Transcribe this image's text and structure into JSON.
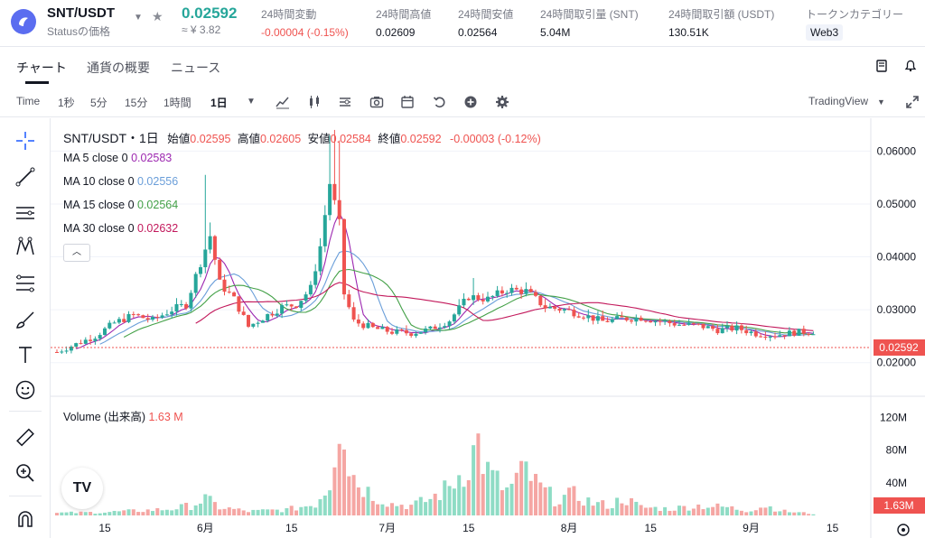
{
  "header": {
    "symbol": "SNT/USDT",
    "subtitle": "Statusの価格",
    "price": "0.02592",
    "price_jpy": "≈ ¥ 3.82",
    "stats": [
      {
        "label": "24時間変動",
        "value": "-0.00004 (-0.15%)",
        "negative": true
      },
      {
        "label": "24時間高値",
        "value": "0.02609"
      },
      {
        "label": "24時間安値",
        "value": "0.02564"
      },
      {
        "label": "24時間取引量 (SNT)",
        "value": "5.04M"
      },
      {
        "label": "24時間取引額 (USDT)",
        "value": "130.51K"
      },
      {
        "label": "トークンカテゴリー",
        "value": "Web3",
        "tag": true
      }
    ]
  },
  "tabs": [
    "チャート",
    "通貨の概要",
    "ニュース"
  ],
  "toolbar": {
    "intervals": [
      "Time",
      "1秒",
      "5分",
      "15分",
      "1時間",
      "1日"
    ],
    "active_interval": "1日",
    "view_mode": "TradingView",
    "icons": [
      "indicator-icon",
      "candle-type-icon",
      "settings-list-icon",
      "camera-icon",
      "calendar-icon",
      "undo-icon",
      "add-icon",
      "gear-icon"
    ]
  },
  "legend": {
    "title": "SNT/USDT・1日",
    "open_label": "始値",
    "open": "0.02595",
    "high_label": "高値",
    "high": "0.02605",
    "low_label": "安値",
    "low": "0.02584",
    "close_label": "終値",
    "close": "0.02592",
    "change": "-0.00003 (-0.12%)",
    "ma": [
      {
        "label": "MA 5 close 0",
        "value": "0.02583",
        "color": "#9c27b0"
      },
      {
        "label": "MA 10 close 0",
        "value": "0.02556",
        "color": "#6a9ed9"
      },
      {
        "label": "MA 15 close 0",
        "value": "0.02564",
        "color": "#43a047"
      },
      {
        "label": "MA 30 close 0",
        "value": "0.02632",
        "color": "#c2185b"
      }
    ],
    "volume_label": "Volume (出来高)",
    "volume_value": "1.63 M"
  },
  "chart_data": {
    "type": "candlestick",
    "colors": {
      "up": "#26a69a",
      "down": "#ef5350",
      "vol_up": "#8fdcc5",
      "vol_down": "#f5a6a3"
    },
    "price_axis": {
      "ticks": [
        "0.06000",
        "0.05000",
        "0.04000",
        "0.03000",
        "0.02000"
      ],
      "range": [
        0.015,
        0.0645
      ],
      "current": "0.02592"
    },
    "volume_axis": {
      "ticks": [
        "120M",
        "80M",
        "40M"
      ],
      "range": [
        0,
        138
      ],
      "current": "1.63M"
    },
    "x_labels": [
      "15",
      "6月",
      "15",
      "7月",
      "15",
      "8月",
      "15",
      "9月",
      "15"
    ],
    "candles": [],
    "anchors": [
      [
        0,
        0.022
      ],
      [
        4,
        0.0235
      ],
      [
        8,
        0.025
      ],
      [
        12,
        0.0275
      ],
      [
        16,
        0.029
      ],
      [
        20,
        0.028
      ],
      [
        24,
        0.03
      ],
      [
        27,
        0.031
      ],
      [
        30,
        0.039
      ],
      [
        32,
        0.044
      ],
      [
        34,
        0.035
      ],
      [
        37,
        0.032
      ],
      [
        40,
        0.0268
      ],
      [
        44,
        0.029
      ],
      [
        47,
        0.0305
      ],
      [
        50,
        0.031
      ],
      [
        53,
        0.034
      ],
      [
        55,
        0.042
      ],
      [
        57,
        0.054
      ],
      [
        59,
        0.046
      ],
      [
        60,
        0.033
      ],
      [
        62,
        0.0278
      ],
      [
        66,
        0.0265
      ],
      [
        70,
        0.0258
      ],
      [
        74,
        0.0256
      ],
      [
        78,
        0.0263
      ],
      [
        82,
        0.028
      ],
      [
        86,
        0.0325
      ],
      [
        90,
        0.032
      ],
      [
        94,
        0.0338
      ],
      [
        98,
        0.0335
      ],
      [
        102,
        0.0305
      ],
      [
        106,
        0.03
      ],
      [
        110,
        0.029
      ],
      [
        114,
        0.0278
      ],
      [
        118,
        0.0283
      ],
      [
        122,
        0.0285
      ],
      [
        126,
        0.0278
      ],
      [
        130,
        0.0272
      ],
      [
        134,
        0.027
      ],
      [
        138,
        0.0262
      ],
      [
        142,
        0.0265
      ],
      [
        146,
        0.0255
      ],
      [
        150,
        0.0252
      ],
      [
        154,
        0.0257
      ],
      [
        158,
        0.0259
      ]
    ],
    "volume_anchors": [
      [
        0,
        3
      ],
      [
        10,
        4
      ],
      [
        18,
        6
      ],
      [
        24,
        8
      ],
      [
        28,
        12
      ],
      [
        31,
        20
      ],
      [
        34,
        10
      ],
      [
        40,
        5
      ],
      [
        48,
        7
      ],
      [
        54,
        14
      ],
      [
        57,
        40
      ],
      [
        59,
        128
      ],
      [
        60,
        115
      ],
      [
        61,
        60
      ],
      [
        63,
        40
      ],
      [
        66,
        25
      ],
      [
        70,
        14
      ],
      [
        74,
        12
      ],
      [
        78,
        20
      ],
      [
        82,
        35
      ],
      [
        86,
        65
      ],
      [
        88,
        88
      ],
      [
        90,
        52
      ],
      [
        94,
        30
      ],
      [
        98,
        55
      ],
      [
        100,
        38
      ],
      [
        104,
        20
      ],
      [
        108,
        25
      ],
      [
        112,
        15
      ],
      [
        116,
        12
      ],
      [
        118,
        22
      ],
      [
        122,
        10
      ],
      [
        128,
        8
      ],
      [
        134,
        12
      ],
      [
        140,
        10
      ],
      [
        144,
        6
      ],
      [
        148,
        12
      ],
      [
        152,
        5
      ],
      [
        156,
        3
      ],
      [
        158,
        2
      ]
    ]
  }
}
